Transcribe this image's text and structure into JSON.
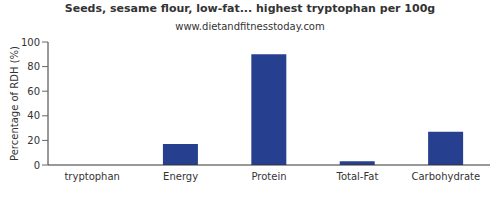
{
  "chart_data": {
    "type": "bar",
    "title": "Seeds, sesame flour, low-fat... highest tryptophan per 100g",
    "subtitle": "www.dietandfitnesstoday.com",
    "y_label": "Percentage of RDH (%)",
    "categories": [
      "tryptophan",
      "Energy",
      "Protein",
      "Total-Fat",
      "Carbohydrate"
    ],
    "values": [
      0,
      17,
      90,
      3,
      27
    ],
    "color": "#26408f",
    "ylim": [
      0,
      100
    ],
    "yticks": [
      0,
      20,
      40,
      60,
      80,
      100
    ],
    "grid": false
  }
}
